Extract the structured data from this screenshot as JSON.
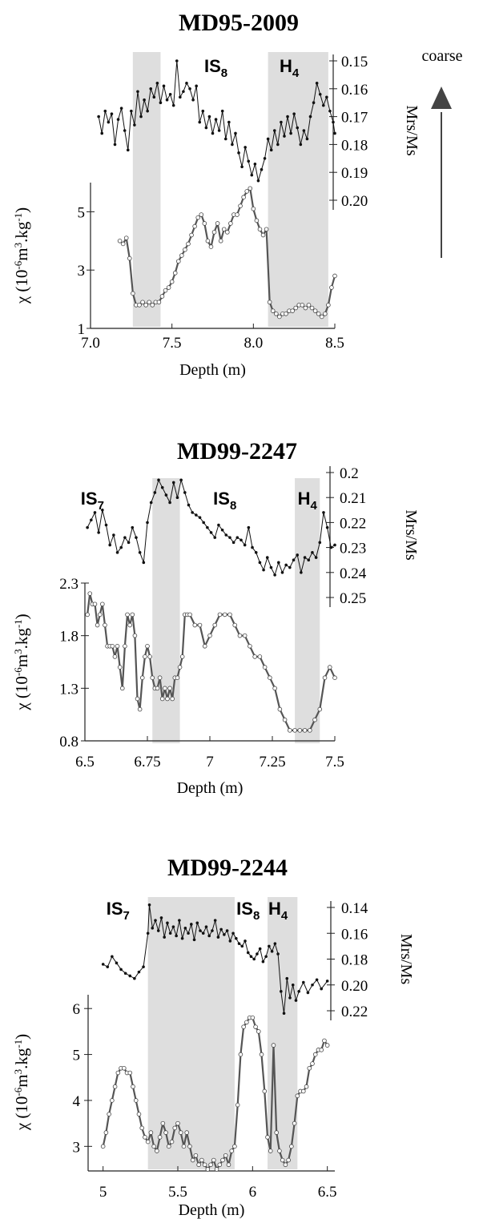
{
  "figure": {
    "arrow_label": "coarse",
    "colors": {
      "shade": "#dedede",
      "mrs_line": "#111111",
      "chi_line": "#555555",
      "axis": "#222222"
    }
  },
  "chart_data": [
    {
      "type": "line",
      "title": "MD95-2009",
      "xlabel": "Depth (m)",
      "ylabel_left": "χ (10-6m3.kg-1)",
      "ylabel_right": "Mrs/Ms",
      "xlim": [
        7.0,
        8.5
      ],
      "xticks": [
        "7.0",
        "7.5",
        "8.0",
        "8.5"
      ],
      "ylim_left": [
        1,
        6
      ],
      "yticks_left": [
        "1",
        "3",
        "5"
      ],
      "ylim_right_inverted": [
        0.15,
        0.2
      ],
      "yticks_right": [
        "0.15",
        "0.16",
        "0.17",
        "0.18",
        "0.19",
        "0.20"
      ],
      "shaded_intervals": [
        [
          7.26,
          7.43
        ],
        [
          8.09,
          8.46
        ]
      ],
      "events": [
        {
          "label": "IS",
          "sub": "8",
          "x": 7.77
        },
        {
          "label": "H",
          "sub": "4",
          "x": 8.22
        }
      ],
      "series": [
        {
          "name": "Mrs/Ms",
          "x": [
            7.05,
            7.07,
            7.09,
            7.11,
            7.13,
            7.15,
            7.17,
            7.19,
            7.21,
            7.23,
            7.25,
            7.27,
            7.29,
            7.31,
            7.33,
            7.35,
            7.37,
            7.39,
            7.41,
            7.43,
            7.45,
            7.47,
            7.49,
            7.51,
            7.53,
            7.55,
            7.57,
            7.59,
            7.61,
            7.63,
            7.65,
            7.67,
            7.69,
            7.71,
            7.73,
            7.75,
            7.77,
            7.79,
            7.81,
            7.83,
            7.85,
            7.87,
            7.89,
            7.91,
            7.93,
            7.95,
            7.97,
            7.99,
            8.01,
            8.03,
            8.05,
            8.07,
            8.09,
            8.11,
            8.13,
            8.15,
            8.17,
            8.19,
            8.21,
            8.23,
            8.25,
            8.27,
            8.29,
            8.31,
            8.33,
            8.35,
            8.37,
            8.39,
            8.41,
            8.43,
            8.45,
            8.47,
            8.49,
            8.5
          ],
          "values": [
            0.17,
            0.176,
            0.168,
            0.172,
            0.169,
            0.18,
            0.171,
            0.167,
            0.175,
            0.182,
            0.168,
            0.173,
            0.161,
            0.17,
            0.164,
            0.168,
            0.16,
            0.163,
            0.158,
            0.165,
            0.159,
            0.164,
            0.162,
            0.166,
            0.15,
            0.163,
            0.161,
            0.158,
            0.16,
            0.164,
            0.159,
            0.172,
            0.168,
            0.174,
            0.17,
            0.176,
            0.171,
            0.175,
            0.168,
            0.178,
            0.172,
            0.18,
            0.176,
            0.183,
            0.188,
            0.181,
            0.186,
            0.191,
            0.187,
            0.193,
            0.189,
            0.185,
            0.178,
            0.182,
            0.175,
            0.18,
            0.172,
            0.177,
            0.17,
            0.176,
            0.169,
            0.174,
            0.18,
            0.175,
            0.178,
            0.17,
            0.165,
            0.158,
            0.162,
            0.166,
            0.163,
            0.168,
            0.172,
            0.176
          ]
        },
        {
          "name": "χ",
          "x": [
            7.18,
            7.2,
            7.22,
            7.24,
            7.26,
            7.28,
            7.3,
            7.32,
            7.34,
            7.36,
            7.38,
            7.4,
            7.42,
            7.44,
            7.46,
            7.48,
            7.5,
            7.52,
            7.54,
            7.56,
            7.58,
            7.6,
            7.62,
            7.64,
            7.66,
            7.68,
            7.7,
            7.72,
            7.74,
            7.76,
            7.78,
            7.8,
            7.82,
            7.84,
            7.86,
            7.88,
            7.9,
            7.92,
            7.94,
            7.96,
            7.98,
            8.0,
            8.02,
            8.04,
            8.06,
            8.08,
            8.1,
            8.12,
            8.14,
            8.16,
            8.18,
            8.2,
            8.22,
            8.24,
            8.26,
            8.28,
            8.3,
            8.32,
            8.34,
            8.36,
            8.38,
            8.4,
            8.42,
            8.44,
            8.46,
            8.48,
            8.5
          ],
          "values": [
            4.0,
            3.9,
            4.1,
            3.4,
            2.2,
            1.8,
            1.8,
            1.9,
            1.8,
            1.9,
            1.8,
            1.9,
            1.9,
            2.1,
            2.3,
            2.4,
            2.6,
            2.9,
            3.3,
            3.5,
            3.7,
            3.9,
            4.2,
            4.5,
            4.8,
            4.9,
            4.6,
            4.0,
            3.8,
            4.3,
            4.6,
            4.0,
            4.4,
            4.3,
            4.6,
            4.9,
            4.9,
            5.2,
            5.5,
            5.7,
            5.8,
            5.1,
            4.7,
            4.4,
            4.2,
            4.4,
            1.9,
            1.6,
            1.5,
            1.4,
            1.5,
            1.5,
            1.6,
            1.6,
            1.7,
            1.8,
            1.8,
            1.7,
            1.8,
            1.7,
            1.6,
            1.5,
            1.4,
            1.5,
            1.8,
            2.4,
            2.8
          ]
        }
      ]
    },
    {
      "type": "line",
      "title": "MD99-2247",
      "xlabel": "Depth (m)",
      "ylabel_left": "χ (10-6m3.kg-1)",
      "ylabel_right": "Mrs/Ms",
      "xlim": [
        6.5,
        7.5
      ],
      "xticks": [
        "6.5",
        "6.75",
        "7",
        "7.25",
        "7.5"
      ],
      "ylim_left": [
        0.8,
        2.3
      ],
      "yticks_left": [
        "0.8",
        "1.3",
        "1.8",
        "2.3"
      ],
      "ylim_right_inverted": [
        0.2,
        0.25
      ],
      "yticks_right": [
        "0.2",
        "0.21",
        "0.22",
        "0.23",
        "0.24",
        "0.25"
      ],
      "shaded_intervals": [
        [
          6.77,
          6.88
        ],
        [
          7.34,
          7.44
        ]
      ],
      "events": [
        {
          "label": "IS",
          "sub": "7",
          "x": 6.53
        },
        {
          "label": "IS",
          "sub": "8",
          "x": 7.06
        },
        {
          "label": "H",
          "sub": "4",
          "x": 7.39
        }
      ],
      "series": [
        {
          "name": "Mrs/Ms",
          "x": [
            6.51,
            6.525,
            6.54,
            6.555,
            6.57,
            6.585,
            6.6,
            6.615,
            6.63,
            6.645,
            6.66,
            6.675,
            6.69,
            6.705,
            6.72,
            6.735,
            6.75,
            6.765,
            6.78,
            6.795,
            6.81,
            6.825,
            6.84,
            6.855,
            6.87,
            6.885,
            6.9,
            6.915,
            6.93,
            6.945,
            6.96,
            6.975,
            6.99,
            7.005,
            7.02,
            7.035,
            7.05,
            7.065,
            7.08,
            7.095,
            7.11,
            7.125,
            7.14,
            7.155,
            7.17,
            7.185,
            7.2,
            7.215,
            7.23,
            7.245,
            7.26,
            7.275,
            7.29,
            7.305,
            7.32,
            7.335,
            7.35,
            7.365,
            7.38,
            7.395,
            7.41,
            7.425,
            7.44,
            7.455,
            7.47,
            7.485,
            7.5
          ],
          "values": [
            0.222,
            0.219,
            0.216,
            0.224,
            0.215,
            0.221,
            0.229,
            0.225,
            0.232,
            0.23,
            0.226,
            0.228,
            0.222,
            0.226,
            0.232,
            0.236,
            0.22,
            0.212,
            0.208,
            0.203,
            0.206,
            0.209,
            0.212,
            0.204,
            0.21,
            0.203,
            0.208,
            0.213,
            0.216,
            0.217,
            0.218,
            0.22,
            0.222,
            0.224,
            0.226,
            0.221,
            0.223,
            0.225,
            0.226,
            0.228,
            0.226,
            0.227,
            0.229,
            0.222,
            0.23,
            0.232,
            0.236,
            0.239,
            0.234,
            0.238,
            0.241,
            0.236,
            0.24,
            0.237,
            0.238,
            0.235,
            0.233,
            0.24,
            0.234,
            0.235,
            0.232,
            0.234,
            0.228,
            0.216,
            0.222,
            0.23,
            0.229
          ]
        },
        {
          "name": "χ",
          "x": [
            6.51,
            6.52,
            6.53,
            6.54,
            6.55,
            6.56,
            6.57,
            6.58,
            6.59,
            6.6,
            6.61,
            6.62,
            6.63,
            6.64,
            6.65,
            6.66,
            6.67,
            6.68,
            6.69,
            6.7,
            6.71,
            6.72,
            6.73,
            6.74,
            6.75,
            6.76,
            6.77,
            6.78,
            6.79,
            6.8,
            6.81,
            6.82,
            6.83,
            6.84,
            6.85,
            6.86,
            6.87,
            6.88,
            6.89,
            6.9,
            6.91,
            6.92,
            6.94,
            6.96,
            6.98,
            7.0,
            7.02,
            7.04,
            7.06,
            7.08,
            7.1,
            7.12,
            7.14,
            7.16,
            7.18,
            7.2,
            7.22,
            7.24,
            7.26,
            7.28,
            7.3,
            7.32,
            7.34,
            7.36,
            7.38,
            7.4,
            7.42,
            7.44,
            7.46,
            7.48,
            7.5
          ],
          "values": [
            2.0,
            2.2,
            2.1,
            2.1,
            1.9,
            2.0,
            2.1,
            1.9,
            1.7,
            1.7,
            1.7,
            1.6,
            1.7,
            1.5,
            1.3,
            1.7,
            2.0,
            1.9,
            2.0,
            1.8,
            1.2,
            1.1,
            1.4,
            1.6,
            1.7,
            1.6,
            1.4,
            1.3,
            1.3,
            1.4,
            1.2,
            1.3,
            1.2,
            1.3,
            1.2,
            1.4,
            1.4,
            1.5,
            1.6,
            2.0,
            2.0,
            2.0,
            1.9,
            1.9,
            1.7,
            1.8,
            1.9,
            2.0,
            2.0,
            2.0,
            1.9,
            1.8,
            1.8,
            1.7,
            1.6,
            1.6,
            1.5,
            1.4,
            1.3,
            1.1,
            1.0,
            0.9,
            0.9,
            0.9,
            0.9,
            0.9,
            1.0,
            1.1,
            1.4,
            1.5,
            1.4
          ]
        }
      ]
    },
    {
      "type": "line",
      "title": "MD99-2244",
      "xlabel": "Depth (m)",
      "ylabel_left": "χ (10-6m3.kg-1)",
      "ylabel_right": "Mrs/Ms",
      "xlim": [
        4.9,
        6.55
      ],
      "xticks": [
        "5",
        "5.5",
        "6",
        "6.5"
      ],
      "ylim_left": [
        2.5,
        6.3
      ],
      "yticks_left": [
        "3",
        "4",
        "5",
        "6"
      ],
      "ylim_right_inverted": [
        0.14,
        0.22
      ],
      "yticks_right": [
        "0.14",
        "0.16",
        "0.18",
        "0.20",
        "0.22"
      ],
      "shaded_intervals": [
        [
          5.3,
          5.88
        ],
        [
          6.1,
          6.3
        ]
      ],
      "events": [
        {
          "label": "IS",
          "sub": "7",
          "x": 5.1
        },
        {
          "label": "IS",
          "sub": "8",
          "x": 5.97
        },
        {
          "label": "H",
          "sub": "4",
          "x": 6.17
        }
      ],
      "series": [
        {
          "name": "Mrs/Ms",
          "x": [
            5.0,
            5.03,
            5.06,
            5.09,
            5.12,
            5.15,
            5.18,
            5.21,
            5.24,
            5.27,
            5.3,
            5.31,
            5.33,
            5.35,
            5.37,
            5.39,
            5.41,
            5.43,
            5.45,
            5.47,
            5.49,
            5.51,
            5.53,
            5.55,
            5.57,
            5.59,
            5.61,
            5.63,
            5.65,
            5.67,
            5.69,
            5.71,
            5.73,
            5.75,
            5.77,
            5.79,
            5.81,
            5.83,
            5.85,
            5.87,
            5.89,
            5.91,
            5.93,
            5.95,
            5.97,
            5.99,
            6.01,
            6.03,
            6.05,
            6.07,
            6.09,
            6.11,
            6.13,
            6.15,
            6.17,
            6.19,
            6.21,
            6.23,
            6.25,
            6.27,
            6.29,
            6.31,
            6.34,
            6.37,
            6.4,
            6.43,
            6.46,
            6.5
          ],
          "values": [
            0.184,
            0.186,
            0.178,
            0.183,
            0.188,
            0.191,
            0.193,
            0.195,
            0.19,
            0.186,
            0.16,
            0.138,
            0.156,
            0.15,
            0.158,
            0.148,
            0.163,
            0.152,
            0.16,
            0.155,
            0.162,
            0.15,
            0.164,
            0.156,
            0.16,
            0.153,
            0.165,
            0.152,
            0.158,
            0.16,
            0.155,
            0.162,
            0.158,
            0.15,
            0.163,
            0.157,
            0.161,
            0.158,
            0.166,
            0.16,
            0.164,
            0.168,
            0.17,
            0.166,
            0.175,
            0.178,
            0.18,
            0.176,
            0.172,
            0.182,
            0.178,
            0.17,
            0.174,
            0.168,
            0.176,
            0.205,
            0.222,
            0.195,
            0.21,
            0.2,
            0.212,
            0.205,
            0.198,
            0.206,
            0.2,
            0.196,
            0.203,
            0.197
          ]
        },
        {
          "name": "χ",
          "x": [
            5.0,
            5.02,
            5.04,
            5.06,
            5.08,
            5.1,
            5.12,
            5.14,
            5.16,
            5.18,
            5.2,
            5.22,
            5.24,
            5.26,
            5.28,
            5.3,
            5.32,
            5.34,
            5.36,
            5.38,
            5.4,
            5.42,
            5.44,
            5.46,
            5.48,
            5.5,
            5.52,
            5.54,
            5.56,
            5.58,
            5.6,
            5.62,
            5.64,
            5.66,
            5.68,
            5.7,
            5.72,
            5.74,
            5.76,
            5.78,
            5.8,
            5.82,
            5.84,
            5.86,
            5.88,
            5.9,
            5.92,
            5.94,
            5.96,
            5.98,
            6.0,
            6.02,
            6.04,
            6.06,
            6.08,
            6.1,
            6.12,
            6.14,
            6.16,
            6.18,
            6.2,
            6.22,
            6.24,
            6.26,
            6.28,
            6.3,
            6.32,
            6.34,
            6.36,
            6.38,
            6.4,
            6.42,
            6.44,
            6.46,
            6.48,
            6.5
          ],
          "values": [
            3.0,
            3.3,
            3.7,
            4.0,
            4.3,
            4.6,
            4.7,
            4.7,
            4.6,
            4.6,
            4.3,
            4.0,
            3.7,
            3.4,
            3.2,
            3.1,
            3.3,
            3.0,
            2.9,
            3.2,
            3.5,
            3.3,
            3.0,
            3.1,
            3.4,
            3.5,
            3.3,
            3.0,
            3.3,
            3.0,
            2.7,
            2.8,
            2.6,
            2.7,
            2.6,
            2.5,
            2.6,
            2.7,
            2.5,
            2.6,
            2.7,
            2.8,
            2.6,
            2.9,
            3.0,
            3.9,
            5.0,
            5.6,
            5.7,
            5.8,
            5.8,
            5.6,
            5.5,
            5.0,
            4.2,
            3.2,
            2.9,
            5.2,
            3.3,
            2.9,
            2.7,
            2.6,
            2.7,
            3.0,
            3.5,
            4.1,
            4.2,
            4.2,
            4.3,
            4.7,
            4.8,
            5.0,
            5.1,
            5.1,
            5.3,
            5.2
          ]
        }
      ]
    }
  ]
}
